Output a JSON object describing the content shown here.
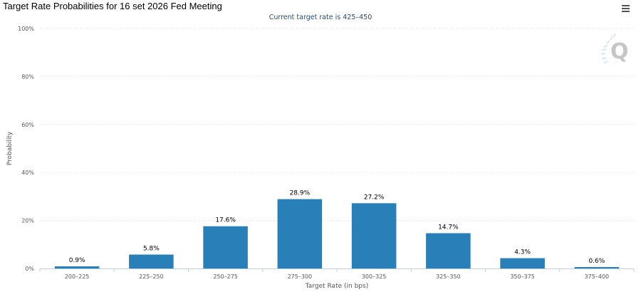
{
  "header": {
    "title": "Target Rate Probabilities for 16 set 2026 Fed Meeting",
    "subtitle": "Current target rate is 425–450",
    "menu_icon": "hamburger-menu-icon",
    "watermark_icon": "q-logo-icon"
  },
  "colors": {
    "bar": "#2980b9",
    "grid": "#d8d8d8",
    "axis": "#c0d0e0"
  },
  "chart_data": {
    "type": "bar",
    "title": "Target Rate Probabilities for 16 set 2026 Fed Meeting",
    "subtitle": "Current target rate is 425–450",
    "xlabel": "Target Rate (in bps)",
    "ylabel": "Probability",
    "categories": [
      "200–225",
      "225–250",
      "250–275",
      "275–300",
      "300–325",
      "325–350",
      "350–375",
      "375–400"
    ],
    "values": [
      0.9,
      5.8,
      17.6,
      28.9,
      27.2,
      14.7,
      4.3,
      0.6
    ],
    "value_labels": [
      "0.9%",
      "5.8%",
      "17.6%",
      "28.9%",
      "27.2%",
      "14.7%",
      "4.3%",
      "0.6%"
    ],
    "y_ticks": [
      0,
      20,
      40,
      60,
      80,
      100
    ],
    "y_tick_labels": [
      "0%",
      "20%",
      "40%",
      "60%",
      "80%",
      "100%"
    ],
    "ylim": [
      0,
      100
    ],
    "grid": true,
    "legend": "none"
  }
}
